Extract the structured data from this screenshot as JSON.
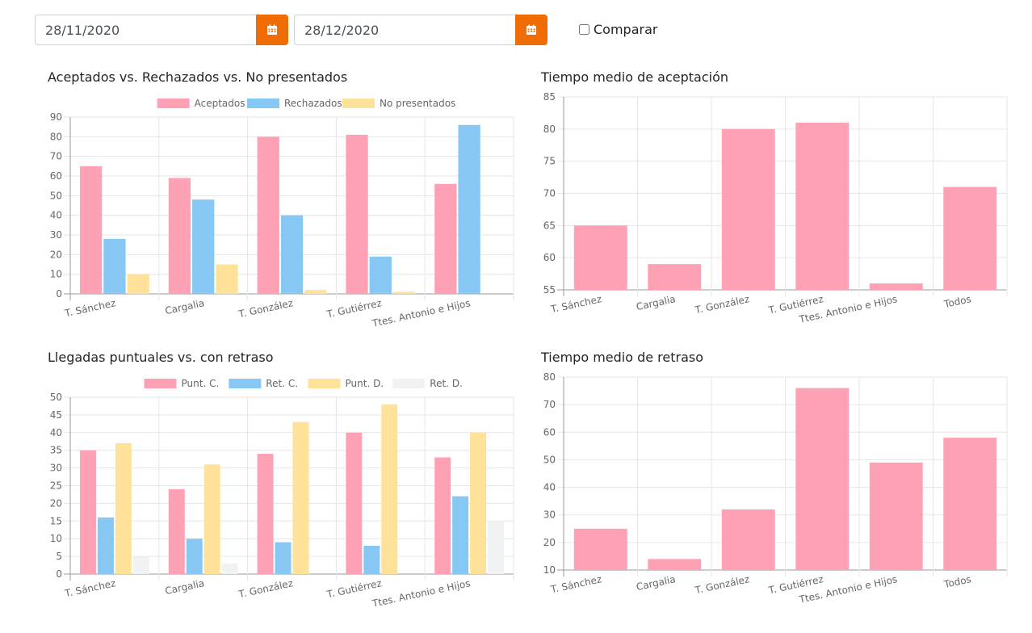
{
  "filters": {
    "start_date": "28/11/2020",
    "end_date": "28/12/2020",
    "compare_label": "Comparar",
    "compare_checked": false,
    "calendar_icon": "calendar-icon",
    "accent_color": "#f06d06"
  },
  "colors": {
    "pink": "#ffa1b5",
    "blue": "#86c7f3",
    "yellow": "#ffe29a",
    "gray": "#f1f2f4"
  },
  "chart_data": [
    {
      "id": "accepted",
      "type": "bar",
      "title": "Aceptados vs. Rechazados vs. No presentados",
      "categories": [
        "T. Sánchez",
        "Cargalia",
        "T. González",
        "T. Gutiérrez",
        "Ttes. Antonio e Hijos"
      ],
      "series": [
        {
          "name": "Aceptados",
          "color": "#ffa1b5",
          "values": [
            65,
            59,
            80,
            81,
            56
          ]
        },
        {
          "name": "Rechazados",
          "color": "#86c7f3",
          "values": [
            28,
            48,
            40,
            19,
            86
          ]
        },
        {
          "name": "No presentados",
          "color": "#ffe29a",
          "values": [
            10,
            15,
            2,
            1,
            0
          ]
        }
      ],
      "ylim": [
        0,
        90
      ],
      "yticks": [
        0,
        10,
        20,
        30,
        40,
        50,
        60,
        70,
        80,
        90
      ],
      "legend": "top"
    },
    {
      "id": "accept-time",
      "type": "bar",
      "title": "Tiempo medio de aceptación",
      "categories": [
        "T. Sánchez",
        "Cargalia",
        "T. González",
        "T. Gutiérrez",
        "Ttes. Antonio e Hijos",
        "Todos"
      ],
      "series": [
        {
          "name": "Tiempo medio de aceptación",
          "color": "#ffa1b5",
          "values": [
            65,
            59,
            80,
            81,
            56,
            71
          ]
        }
      ],
      "ylim": [
        55,
        85
      ],
      "yticks": [
        55,
        60,
        65,
        70,
        75,
        80,
        85
      ],
      "legend": "none"
    },
    {
      "id": "arrivals",
      "type": "bar",
      "title": "Llegadas puntuales vs. con retraso",
      "categories": [
        "T. Sánchez",
        "Cargalia",
        "T. González",
        "T. Gutiérrez",
        "Ttes. Antonio e Hijos"
      ],
      "series": [
        {
          "name": "Punt. C.",
          "color": "#ffa1b5",
          "values": [
            35,
            24,
            34,
            40,
            33
          ]
        },
        {
          "name": "Ret. C.",
          "color": "#86c7f3",
          "values": [
            16,
            10,
            9,
            8,
            22
          ]
        },
        {
          "name": "Punt. D.",
          "color": "#ffe29a",
          "values": [
            37,
            31,
            43,
            48,
            40
          ]
        },
        {
          "name": "Ret. D.",
          "color": "#f1f2f4",
          "values": [
            5,
            3,
            0,
            0,
            15
          ]
        }
      ],
      "ylim": [
        0,
        50
      ],
      "yticks": [
        0,
        5,
        10,
        15,
        20,
        25,
        30,
        35,
        40,
        45,
        50
      ],
      "legend": "top"
    },
    {
      "id": "delay-time",
      "type": "bar",
      "title": "Tiempo medio de retraso",
      "categories": [
        "T. Sánchez",
        "Cargalia",
        "T. González",
        "T. Gutiérrez",
        "Ttes. Antonio e Hijos",
        "Todos"
      ],
      "series": [
        {
          "name": "Tiempo medio de retraso",
          "color": "#ffa1b5",
          "values": [
            25,
            14,
            32,
            76,
            49,
            58
          ]
        }
      ],
      "ylim": [
        10,
        80
      ],
      "yticks": [
        10,
        20,
        30,
        40,
        50,
        60,
        70,
        80
      ],
      "legend": "none"
    }
  ]
}
